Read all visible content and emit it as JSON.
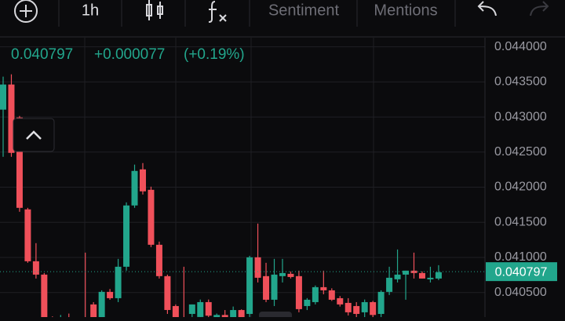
{
  "toolbar": {
    "interval": "1h",
    "tabs": [
      "Sentiment",
      "Mentions"
    ]
  },
  "chart_data": {
    "type": "candlestick",
    "last_price": 0.040797,
    "change": "+0.000077",
    "change_pct": "(+0.19%)",
    "up_color": "#22a68c",
    "down_color": "#f0505a",
    "categories": [
      null,
      null,
      null,
      null,
      null,
      null,
      null,
      null,
      null,
      null,
      null,
      null,
      null,
      null,
      null,
      null,
      null,
      null,
      null,
      null,
      null,
      null,
      null,
      null,
      null,
      null,
      null,
      null,
      null,
      null,
      null,
      null,
      null,
      null,
      null,
      null,
      null,
      null,
      null,
      null,
      null,
      null,
      null,
      null,
      null,
      null,
      null,
      null,
      null,
      null,
      null,
      null,
      null,
      null
    ],
    "open": [
      0.043105,
      0.043463,
      0.042993,
      0.041684,
      0.040945,
      0.040755,
      0.04012,
      0.04005,
      0.0401,
      0.04006,
      0.04012,
      0.04033,
      0.0401,
      0.040509,
      0.040419,
      0.040867,
      0.04174,
      0.042254,
      0.041963,
      0.04118,
      0.040733,
      0.040307,
      0.04015,
      0.040195,
      0.040151,
      0.040363,
      0.04012,
      0.04018,
      0.0401,
      0.04025,
      0.040195,
      0.041001,
      0.040733,
      0.040397,
      0.040733,
      0.040766,
      0.040733,
      0.040307,
      0.040363,
      0.040576,
      0.040531,
      0.040419,
      0.040352,
      0.040307,
      0.040218,
      0.040363,
      0.040195,
      0.040509,
      0.040688,
      0.040755,
      0.040811,
      0.040777,
      0.040688,
      0.040699
    ],
    "high": [
      0.043575,
      0.043608,
      0.043015,
      0.041706,
      0.041203,
      0.040777,
      0.04016,
      0.04018,
      0.0402,
      0.04014,
      0.041068,
      0.040363,
      0.040531,
      0.04055,
      0.040979,
      0.041784,
      0.042322,
      0.042344,
      0.042008,
      0.041225,
      0.040755,
      0.04033,
      0.040867,
      0.04033,
      0.0404,
      0.0404,
      0.0402,
      0.04025,
      0.0403,
      0.04026,
      0.041023,
      0.041482,
      0.040923,
      0.040979,
      0.040979,
      0.0408,
      0.040811,
      0.04042,
      0.0406,
      0.040811,
      0.04056,
      0.04045,
      0.040419,
      0.040363,
      0.0404,
      0.04038,
      0.040531,
      0.040867,
      0.041113,
      0.040811,
      0.041068,
      0.0408,
      0.040867,
      0.040889
    ],
    "low": [
      0.042433,
      0.042433,
      0.04165,
      0.040923,
      0.040699,
      0.0401,
      0.04,
      0.03995,
      0.04,
      0.03998,
      0.04,
      0.04005,
      0.04005,
      0.040397,
      0.040363,
      0.040811,
      0.041706,
      0.041896,
      0.041147,
      0.040699,
      0.040195,
      0.0401,
      0.04005,
      0.0401,
      0.0401,
      0.04015,
      0.04005,
      0.0401,
      0.04005,
      0.0401,
      0.040151,
      0.040643,
      0.040363,
      0.040307,
      0.040643,
      0.0407,
      0.040218,
      0.04025,
      0.04033,
      0.040475,
      0.04038,
      0.0403,
      0.040173,
      0.04015,
      0.04015,
      0.04015,
      0.04015,
      0.040464,
      0.040643,
      0.040397,
      0.040699,
      0.040699,
      0.040643,
      0.040677
    ],
    "close": [
      0.043463,
      0.042489,
      0.041706,
      0.040945,
      0.040755,
      0.04012,
      0.04005,
      0.0401,
      0.04006,
      0.04012,
      0.04009,
      0.0401,
      0.040509,
      0.040419,
      0.040867,
      0.04174,
      0.042232,
      0.041941,
      0.04118,
      0.040733,
      0.040251,
      0.04015,
      0.04012,
      0.04033,
      0.040363,
      0.04017,
      0.04018,
      0.04012,
      0.04025,
      0.04015,
      0.041001,
      0.04071,
      0.040397,
      0.040755,
      0.040777,
      0.040721,
      0.040263,
      0.040397,
      0.040576,
      0.040531,
      0.040397,
      0.04033,
      0.040218,
      0.040195,
      0.040363,
      0.04018,
      0.040509,
      0.04071,
      0.040755,
      0.040811,
      0.040777,
      0.040699,
      0.04071,
      0.040789
    ],
    "ylim": [
      0.04015,
      0.04413
    ],
    "yticks": [
      {
        "value": 0.044,
        "label": "0.044000"
      },
      {
        "value": 0.0435,
        "label": "0.043500"
      },
      {
        "value": 0.043,
        "label": "0.043000"
      },
      {
        "value": 0.0425,
        "label": "0.042500"
      },
      {
        "value": 0.042,
        "label": "0.042000"
      },
      {
        "value": 0.0415,
        "label": "0.041500"
      },
      {
        "value": 0.041,
        "label": "0.041000"
      },
      {
        "value": 0.0405,
        "label": "0.040500"
      }
    ],
    "grid": true
  }
}
